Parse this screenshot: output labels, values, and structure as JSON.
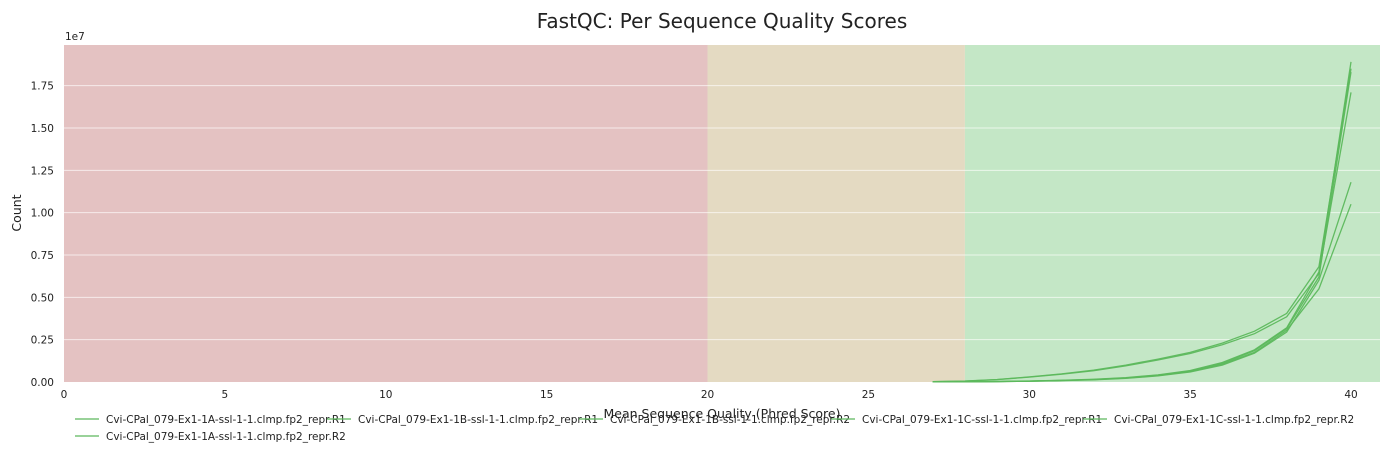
{
  "chart_data": {
    "type": "line",
    "title": "FastQC: Per Sequence Quality Scores",
    "xlabel": "Mean Sequence Quality (Phred Score)",
    "ylabel": "Count",
    "y_offset_label": "1e7",
    "xlim": [
      0,
      40.9
    ],
    "ylim": [
      0,
      19900000
    ],
    "x_ticks": [
      0,
      5,
      10,
      15,
      20,
      25,
      30,
      35,
      40
    ],
    "y_ticks": [
      0,
      2500000,
      5000000,
      7500000,
      10000000,
      12500000,
      15000000,
      17500000
    ],
    "y_tick_labels": [
      "0.00",
      "0.25",
      "0.50",
      "0.75",
      "1.00",
      "1.25",
      "1.50",
      "1.75"
    ],
    "grid": true,
    "legend_position": "bottom-left",
    "bands": [
      {
        "from": 0,
        "to": 20,
        "color": "#e4c2c2",
        "meaning": "poor"
      },
      {
        "from": 20,
        "to": 28,
        "color": "#e4dac2",
        "meaning": "reasonable"
      },
      {
        "from": 28,
        "to": 40.9,
        "color": "#c4e7c6",
        "meaning": "good"
      }
    ],
    "line_color": "#5cb85c",
    "x": [
      27,
      28,
      29,
      30,
      31,
      32,
      33,
      34,
      35,
      36,
      37,
      38,
      39,
      40
    ],
    "series": [
      {
        "name": "Cvi-CPal_079-Ex1-1A-ssl-1-1.clmp.fp2_repr.R1",
        "values": [
          20000,
          60000,
          150000,
          300000,
          480000,
          700000,
          1000000,
          1350000,
          1750000,
          2300000,
          3000000,
          4050000,
          6800000,
          18500000
        ]
      },
      {
        "name": "Cvi-CPal_079-Ex1-1B-ssl-1-1.clmp.fp2_repr.R1",
        "values": [
          20000,
          55000,
          140000,
          290000,
          460000,
          670000,
          950000,
          1300000,
          1680000,
          2200000,
          2850000,
          3850000,
          6400000,
          17100000
        ]
      },
      {
        "name": "Cvi-CPal_079-Ex1-1B-ssl-1-1.clmp.fp2_repr.R2",
        "values": [
          5000,
          15000,
          30000,
          60000,
          100000,
          160000,
          260000,
          420000,
          680000,
          1150000,
          1900000,
          3200000,
          6500000,
          18900000
        ]
      },
      {
        "name": "Cvi-CPal_079-Ex1-1C-ssl-1-1.clmp.fp2_repr.R1",
        "values": [
          5000,
          12000,
          25000,
          50000,
          90000,
          140000,
          230000,
          380000,
          620000,
          1050000,
          1750000,
          3050000,
          5500000,
          10500000
        ]
      },
      {
        "name": "Cvi-CPal_079-Ex1-1C-ssl-1-1.clmp.fp2_repr.R2",
        "values": [
          4000,
          10000,
          22000,
          45000,
          80000,
          130000,
          210000,
          360000,
          590000,
          1000000,
          1700000,
          2950000,
          6000000,
          11800000
        ]
      },
      {
        "name": "Cvi-CPal_079-Ex1-1A-ssl-1-1.clmp.fp2_repr.R2",
        "values": [
          5000,
          14000,
          28000,
          55000,
          95000,
          150000,
          245000,
          400000,
          650000,
          1100000,
          1850000,
          3150000,
          6200000,
          18300000
        ]
      }
    ]
  }
}
